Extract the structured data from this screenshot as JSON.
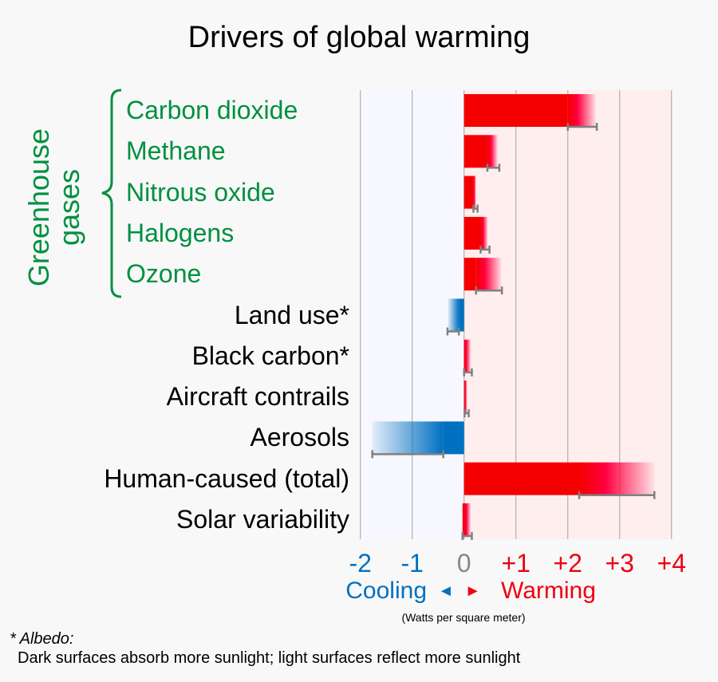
{
  "chart_data": {
    "type": "bar",
    "orientation": "horizontal",
    "title": "Drivers of global warming",
    "xlim": [
      -2,
      4
    ],
    "x_ticks": [
      "-2",
      "-1",
      "0",
      "+1",
      "+2",
      "+3",
      "+4"
    ],
    "x_tick_values": [
      -2,
      -1,
      0,
      1,
      2,
      3,
      4
    ],
    "xlabel_left": "Cooling",
    "xlabel_right": "Warming",
    "units": "(Watts per square meter)",
    "group_label": "Greenhouse gases",
    "categories": [
      "Carbon dioxide",
      "Methane",
      "Nitrous oxide",
      "Halogens",
      "Ozone",
      "Land use*",
      "Black carbon*",
      "Aircraft contrails",
      "Aerosols",
      "Human-caused (total)",
      "Solar variability"
    ],
    "greenhouse": [
      true,
      true,
      true,
      true,
      true,
      false,
      false,
      false,
      false,
      false,
      false
    ],
    "values": [
      2.54,
      0.65,
      0.23,
      0.46,
      0.72,
      -0.31,
      0.13,
      0.06,
      -1.77,
      3.67,
      0.13
    ],
    "error_low": [
      2.0,
      0.45,
      0.18,
      0.32,
      0.23,
      -0.32,
      0.0,
      0.01,
      -1.77,
      2.22,
      -0.03
    ],
    "error_high": [
      2.56,
      0.68,
      0.26,
      0.49,
      0.73,
      -0.1,
      0.15,
      0.09,
      -0.4,
      3.67,
      0.15
    ],
    "colors": {
      "warming": "#f50000",
      "cooling": "#0070c0",
      "green": "#009040",
      "error": "#808080"
    }
  },
  "arrows": "◄ ►",
  "footnote": {
    "title": "* Albedo:",
    "text": "Dark surfaces absorb more sunlight; light surfaces reflect more sunlight"
  }
}
